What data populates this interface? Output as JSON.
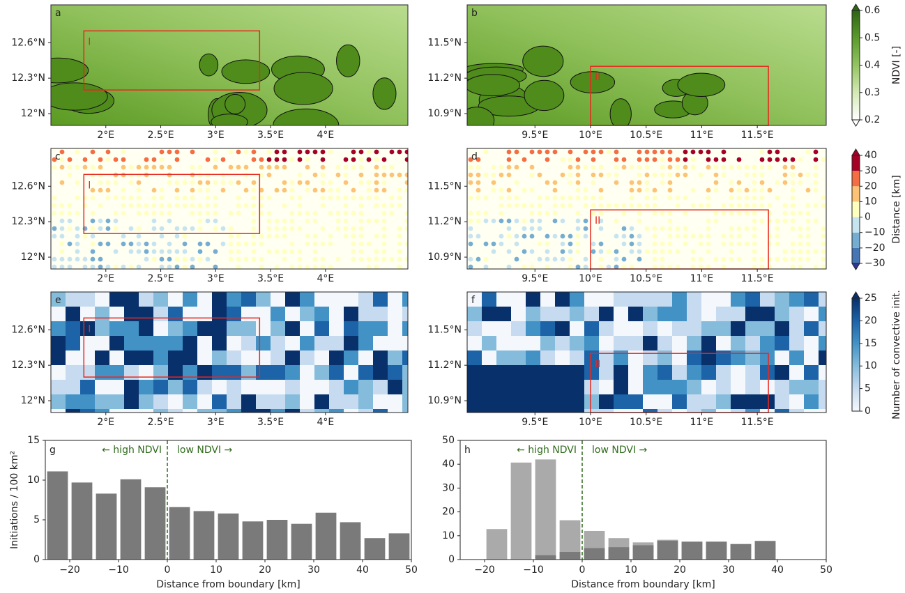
{
  "chart_data": [
    {
      "type": "map",
      "label": "a",
      "xlim": [
        1.5,
        4.75
      ],
      "ylim": [
        11.9,
        12.92
      ],
      "xticks": [
        {
          "value": 2,
          "label": "2°E"
        },
        {
          "value": 2.5,
          "label": "2.5°E"
        },
        {
          "value": 3,
          "label": "3°E"
        },
        {
          "value": 3.5,
          "label": "3.5°E"
        },
        {
          "value": 4,
          "label": "4°E"
        }
      ],
      "yticks": [
        {
          "value": 12,
          "label": "12°N"
        },
        {
          "value": 12.3,
          "label": "12.3°N"
        },
        {
          "value": 12.6,
          "label": "12.6°N"
        }
      ],
      "region": {
        "label": "I",
        "lon": [
          1.8,
          3.4
        ],
        "lat": [
          12.2,
          12.7
        ],
        "color": "#e8281e"
      }
    },
    {
      "type": "map",
      "label": "b",
      "xlim": [
        8.89,
        12.12
      ],
      "ylim": [
        10.8,
        11.82
      ],
      "xticks": [
        {
          "value": 9.5,
          "label": "9.5°E"
        },
        {
          "value": 10,
          "label": "10°E"
        },
        {
          "value": 10.5,
          "label": "10.5°E"
        },
        {
          "value": 11,
          "label": "11°E"
        },
        {
          "value": 11.5,
          "label": "11.5°E"
        }
      ],
      "yticks": [
        {
          "value": 10.9,
          "label": "10.9°N"
        },
        {
          "value": 11.2,
          "label": "11.2°N"
        },
        {
          "value": 11.5,
          "label": "11.5°N"
        }
      ],
      "region": {
        "label": "II",
        "lon": [
          10,
          11.6
        ],
        "lat": [
          10.8,
          11.3
        ],
        "color": "#e8281e"
      }
    },
    {
      "type": "map",
      "label": "c",
      "xlim": [
        1.5,
        4.75
      ],
      "ylim": [
        11.9,
        12.92
      ],
      "xticks": [
        {
          "value": 2,
          "label": "2°E"
        },
        {
          "value": 2.5,
          "label": "2.5°E"
        },
        {
          "value": 3,
          "label": "3°E"
        },
        {
          "value": 3.5,
          "label": "3.5°E"
        },
        {
          "value": 4,
          "label": "4°E"
        }
      ],
      "yticks": [
        {
          "value": 12,
          "label": "12°N"
        },
        {
          "value": 12.3,
          "label": "12.3°N"
        },
        {
          "value": 12.6,
          "label": "12.6°N"
        }
      ],
      "region": {
        "label": "I",
        "lon": [
          1.8,
          3.4
        ],
        "lat": [
          12.2,
          12.7
        ],
        "color": "#e8281e"
      }
    },
    {
      "type": "map",
      "label": "d",
      "xlim": [
        8.89,
        12.12
      ],
      "ylim": [
        10.8,
        11.82
      ],
      "xticks": [
        {
          "value": 9.5,
          "label": "9.5°E"
        },
        {
          "value": 10,
          "label": "10°E"
        },
        {
          "value": 10.5,
          "label": "10.5°E"
        },
        {
          "value": 11,
          "label": "11°E"
        },
        {
          "value": 11.5,
          "label": "11.5°E"
        }
      ],
      "yticks": [
        {
          "value": 10.9,
          "label": "10.9°N"
        },
        {
          "value": 11.2,
          "label": "11.2°N"
        },
        {
          "value": 11.5,
          "label": "11.5°N"
        }
      ],
      "region": {
        "label": "II",
        "lon": [
          10,
          11.6
        ],
        "lat": [
          10.8,
          11.3
        ],
        "color": "#e8281e"
      }
    },
    {
      "type": "map",
      "label": "e",
      "xlim": [
        1.5,
        4.75
      ],
      "ylim": [
        11.9,
        12.92
      ],
      "xticks": [
        {
          "value": 2,
          "label": "2°E"
        },
        {
          "value": 2.5,
          "label": "2.5°E"
        },
        {
          "value": 3,
          "label": "3°E"
        },
        {
          "value": 3.5,
          "label": "3.5°E"
        },
        {
          "value": 4,
          "label": "4°E"
        }
      ],
      "yticks": [
        {
          "value": 12,
          "label": "12°N"
        },
        {
          "value": 12.3,
          "label": "12.3°N"
        },
        {
          "value": 12.6,
          "label": "12.6°N"
        }
      ],
      "region": {
        "label": "I",
        "lon": [
          1.8,
          3.4
        ],
        "lat": [
          12.2,
          12.7
        ],
        "color": "#e8281e"
      }
    },
    {
      "type": "map",
      "label": "f",
      "xlim": [
        8.89,
        12.12
      ],
      "ylim": [
        10.8,
        11.82
      ],
      "xticks": [
        {
          "value": 9.5,
          "label": "9.5°E"
        },
        {
          "value": 10,
          "label": "10°E"
        },
        {
          "value": 10.5,
          "label": "10.5°E"
        },
        {
          "value": 11,
          "label": "11°E"
        },
        {
          "value": 11.5,
          "label": "11.5°E"
        }
      ],
      "yticks": [
        {
          "value": 10.9,
          "label": "10.9°N"
        },
        {
          "value": 11.2,
          "label": "11.2°N"
        },
        {
          "value": 11.5,
          "label": "11.5°N"
        }
      ],
      "region": {
        "label": "II",
        "lon": [
          10,
          11.6
        ],
        "lat": [
          10.8,
          11.3
        ],
        "color": "#e8281e"
      }
    },
    {
      "type": "colorbar",
      "label": "NDVI [-]",
      "lim": [
        0.2,
        0.6
      ],
      "ticks": [
        0.2,
        0.3,
        0.4,
        0.5,
        0.6
      ],
      "colors": [
        "#ffffff",
        "#d4e9b4",
        "#93c461",
        "#5a9a2a",
        "#2e6414"
      ],
      "under": "#ffffff",
      "over": "#2e6414",
      "discrete": false
    },
    {
      "type": "colorbar",
      "label": "Distance [km]",
      "lim": [
        -30,
        40
      ],
      "ticks": [
        {
          "value": -30,
          "label": "−30"
        },
        {
          "value": -20,
          "label": "−20"
        },
        {
          "value": -10,
          "label": "−10"
        },
        0,
        10,
        20,
        30,
        40
      ],
      "colors": [
        "#4575b4",
        "#74add1",
        "#c6e4f0",
        "#ffffbf",
        "#fdc374",
        "#f46d43",
        "#a50026"
      ],
      "under": "#313695",
      "over": "#a50026",
      "discrete": true
    },
    {
      "type": "colorbar",
      "label": "Number of convective init.",
      "lim": [
        0,
        25
      ],
      "ticks": [
        0,
        5,
        10,
        15,
        20,
        25
      ],
      "colors": [
        "#f4f8fd",
        "#c6dbef",
        "#85bcdc",
        "#4292c6",
        "#1c63a8",
        "#08306b"
      ],
      "over": "#08306b",
      "discrete": false
    },
    {
      "type": "bar",
      "label": "g",
      "x": [
        -22.5,
        -17.5,
        -12.5,
        -7.5,
        -2.5,
        2.5,
        7.5,
        12.5,
        17.5,
        22.5,
        27.5,
        32.5,
        37.5,
        42.5,
        47.5
      ],
      "values": [
        11.1,
        9.7,
        8.3,
        10.1,
        9.1,
        6.6,
        6.1,
        5.8,
        4.8,
        5.0,
        4.5,
        5.9,
        4.7,
        2.7,
        3.3
      ],
      "color": "#7a7a7a",
      "xlim": [
        -25,
        50
      ],
      "ylim": [
        0,
        15
      ],
      "xticks": [
        {
          "value": -20,
          "label": "−20"
        },
        {
          "value": -10,
          "label": "−10"
        },
        0,
        10,
        20,
        30,
        40,
        50
      ],
      "yticks": [
        0,
        5,
        10,
        15
      ],
      "xlabel": "Distance from boundary [km]",
      "ylabel": "Initiations / 100 km²",
      "boundary": 0,
      "left_note": "← high NDVI",
      "right_note": "low NDVI →",
      "note_color": "#2f6b1c"
    },
    {
      "type": "bar",
      "label": "h",
      "x": [
        -17.5,
        -12.5,
        -7.5,
        -2.5,
        2.5,
        7.5,
        12.5,
        17.5,
        22.5,
        27.5,
        32.5,
        37.5
      ],
      "series": [
        {
          "color": "#aaaaaa",
          "values": [
            12.8,
            40.7,
            42.0,
            16.5,
            12.0,
            9.0,
            7.2,
            8.3,
            7.5,
            7.5,
            6.5,
            7.8
          ]
        },
        {
          "color": "#7a7a7a",
          "values": [
            null,
            null,
            1.8,
            3.2,
            4.8,
            5.2,
            6.0,
            7.9,
            7.5,
            7.5,
            6.5,
            7.8
          ]
        }
      ],
      "xlim": [
        -25,
        50
      ],
      "ylim": [
        0,
        50
      ],
      "xticks": [
        {
          "value": -20,
          "label": "−20"
        },
        {
          "value": -10,
          "label": "−10"
        },
        0,
        10,
        20,
        30,
        40,
        50
      ],
      "yticks": [
        0,
        10,
        20,
        30,
        40,
        50
      ],
      "xlabel": "Distance from boundary [km]",
      "boundary": 0,
      "left_note": "← high NDVI",
      "right_note": "low NDVI →",
      "note_color": "#2f6b1c"
    }
  ]
}
